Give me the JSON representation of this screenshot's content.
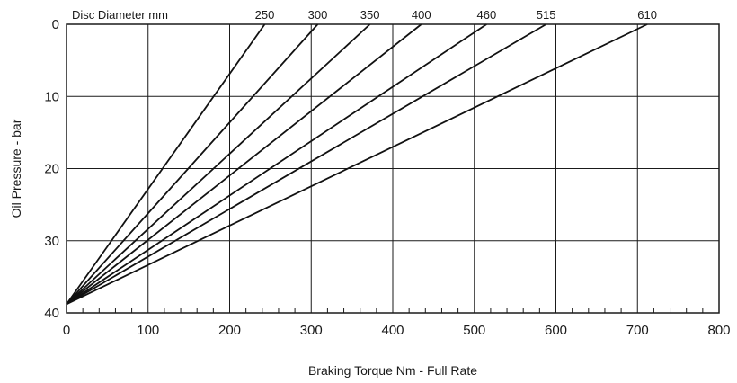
{
  "chart_data": {
    "type": "line",
    "title": "",
    "legend_title": "Disc Diameter mm",
    "xlabel": "Braking Torque Nm - Full Rate",
    "ylabel": "Oil Pressure - bar",
    "xlim": [
      0,
      800
    ],
    "ylim": [
      0,
      40
    ],
    "y_inverted": true,
    "grid": true,
    "x_ticks": [
      0,
      100,
      200,
      300,
      400,
      500,
      600,
      700,
      800
    ],
    "y_ticks": [
      0,
      10,
      20,
      30,
      40
    ],
    "x_minor_tick_step": 20,
    "series": [
      {
        "name": "250",
        "x": [
          0,
          243
        ],
        "y": [
          38.8,
          0
        ]
      },
      {
        "name": "300",
        "x": [
          0,
          308
        ],
        "y": [
          38.8,
          0
        ]
      },
      {
        "name": "350",
        "x": [
          0,
          372
        ],
        "y": [
          38.8,
          0
        ]
      },
      {
        "name": "400",
        "x": [
          0,
          435
        ],
        "y": [
          38.8,
          0
        ]
      },
      {
        "name": "460",
        "x": [
          0,
          515
        ],
        "y": [
          38.8,
          0
        ]
      },
      {
        "name": "515",
        "x": [
          0,
          588
        ],
        "y": [
          38.8,
          0
        ]
      },
      {
        "name": "610",
        "x": [
          0,
          712
        ],
        "y": [
          38.8,
          0
        ]
      }
    ]
  }
}
